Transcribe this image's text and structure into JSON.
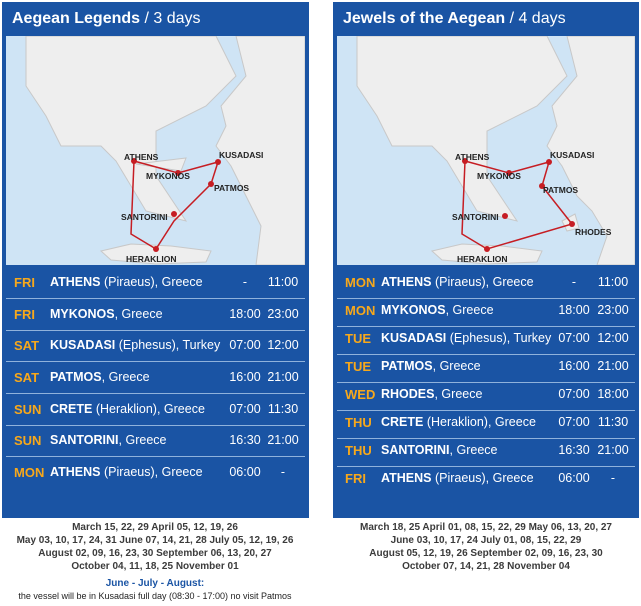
{
  "left": {
    "title_main": "Aegean Legends",
    "title_sub": " / 3 days",
    "map_labels": [
      "ATHENS",
      "MYKONOS",
      "KUSADASI",
      "PATMOS",
      "SANTORINI",
      "HERAKLION"
    ],
    "rows": [
      {
        "day": "FRI",
        "port": "ATHENS",
        "detail": " (Piraeus), Greece",
        "arr": "-",
        "dep": "11:00"
      },
      {
        "day": "FRI",
        "port": "MYKONOS",
        "detail": ", Greece",
        "arr": "18:00",
        "dep": "23:00"
      },
      {
        "day": "SAT",
        "port": "KUSADASI",
        "detail": " (Ephesus), Turkey",
        "arr": "07:00",
        "dep": "12:00"
      },
      {
        "day": "SAT",
        "port": "PATMOS",
        "detail": ", Greece",
        "arr": "16:00",
        "dep": "21:00"
      },
      {
        "day": "SUN",
        "port": "CRETE",
        "detail": " (Heraklion), Greece",
        "arr": "07:00",
        "dep": "11:30"
      },
      {
        "day": "SUN",
        "port": "SANTORINI",
        "detail": ", Greece",
        "arr": "16:30",
        "dep": "21:00"
      },
      {
        "day": "MON",
        "port": "ATHENS",
        "detail": " (Piraeus), Greece",
        "arr": "06:00",
        "dep": "-"
      }
    ],
    "dates": [
      "March 15, 22, 29   April 05, 12, 19, 26",
      "May 03, 10, 17, 24, 31   June 07, 14, 21, 28   July 05, 12, 19, 26",
      "August 02, 09, 16, 23, 30   September 06, 13, 20, 27",
      "October 04, 11, 18, 25   November 01"
    ],
    "note_title": "June - July - August:",
    "note_text": "the vessel will be in Kusadasi full day (08:30 - 17:00) no visit Patmos"
  },
  "right": {
    "title_main": "Jewels of the Aegean",
    "title_sub": " / 4 days",
    "map_labels": [
      "ATHENS",
      "MYKONOS",
      "KUSADASI",
      "PATMOS",
      "SANTORINI",
      "RHODES",
      "HERAKLION"
    ],
    "rows": [
      {
        "day": "MON",
        "port": "ATHENS",
        "detail": " (Piraeus), Greece",
        "arr": "-",
        "dep": "11:00"
      },
      {
        "day": "MON",
        "port": "MYKONOS",
        "detail": ", Greece",
        "arr": "18:00",
        "dep": "23:00"
      },
      {
        "day": "TUE",
        "port": "KUSADASI",
        "detail": " (Ephesus), Turkey",
        "arr": "07:00",
        "dep": "12:00"
      },
      {
        "day": "TUE",
        "port": "PATMOS",
        "detail": ", Greece",
        "arr": "16:00",
        "dep": "21:00"
      },
      {
        "day": "WED",
        "port": "RHODES",
        "detail": ", Greece",
        "arr": "07:00",
        "dep": "18:00"
      },
      {
        "day": "THU",
        "port": "CRETE",
        "detail": " (Heraklion), Greece",
        "arr": "07:00",
        "dep": "11:30"
      },
      {
        "day": "THU",
        "port": "SANTORINI",
        "detail": ", Greece",
        "arr": "16:30",
        "dep": "21:00"
      },
      {
        "day": "FRI",
        "port": "ATHENS",
        "detail": " (Piraeus), Greece",
        "arr": "06:00",
        "dep": "-"
      }
    ],
    "dates": [
      "March 18, 25   April 01, 08, 15, 22, 29   May 06, 13, 20, 27",
      "June 03, 10, 17, 24   July 01, 08, 15, 22, 29",
      "August 05, 12, 19, 26   September 02, 09, 16, 23, 30",
      "October 07, 14, 21, 28   November 04"
    ]
  },
  "colors": {
    "panel": "#1a54a4",
    "day": "#f7a81b",
    "sea": "#cfe4f5",
    "land": "#eeeeee"
  }
}
